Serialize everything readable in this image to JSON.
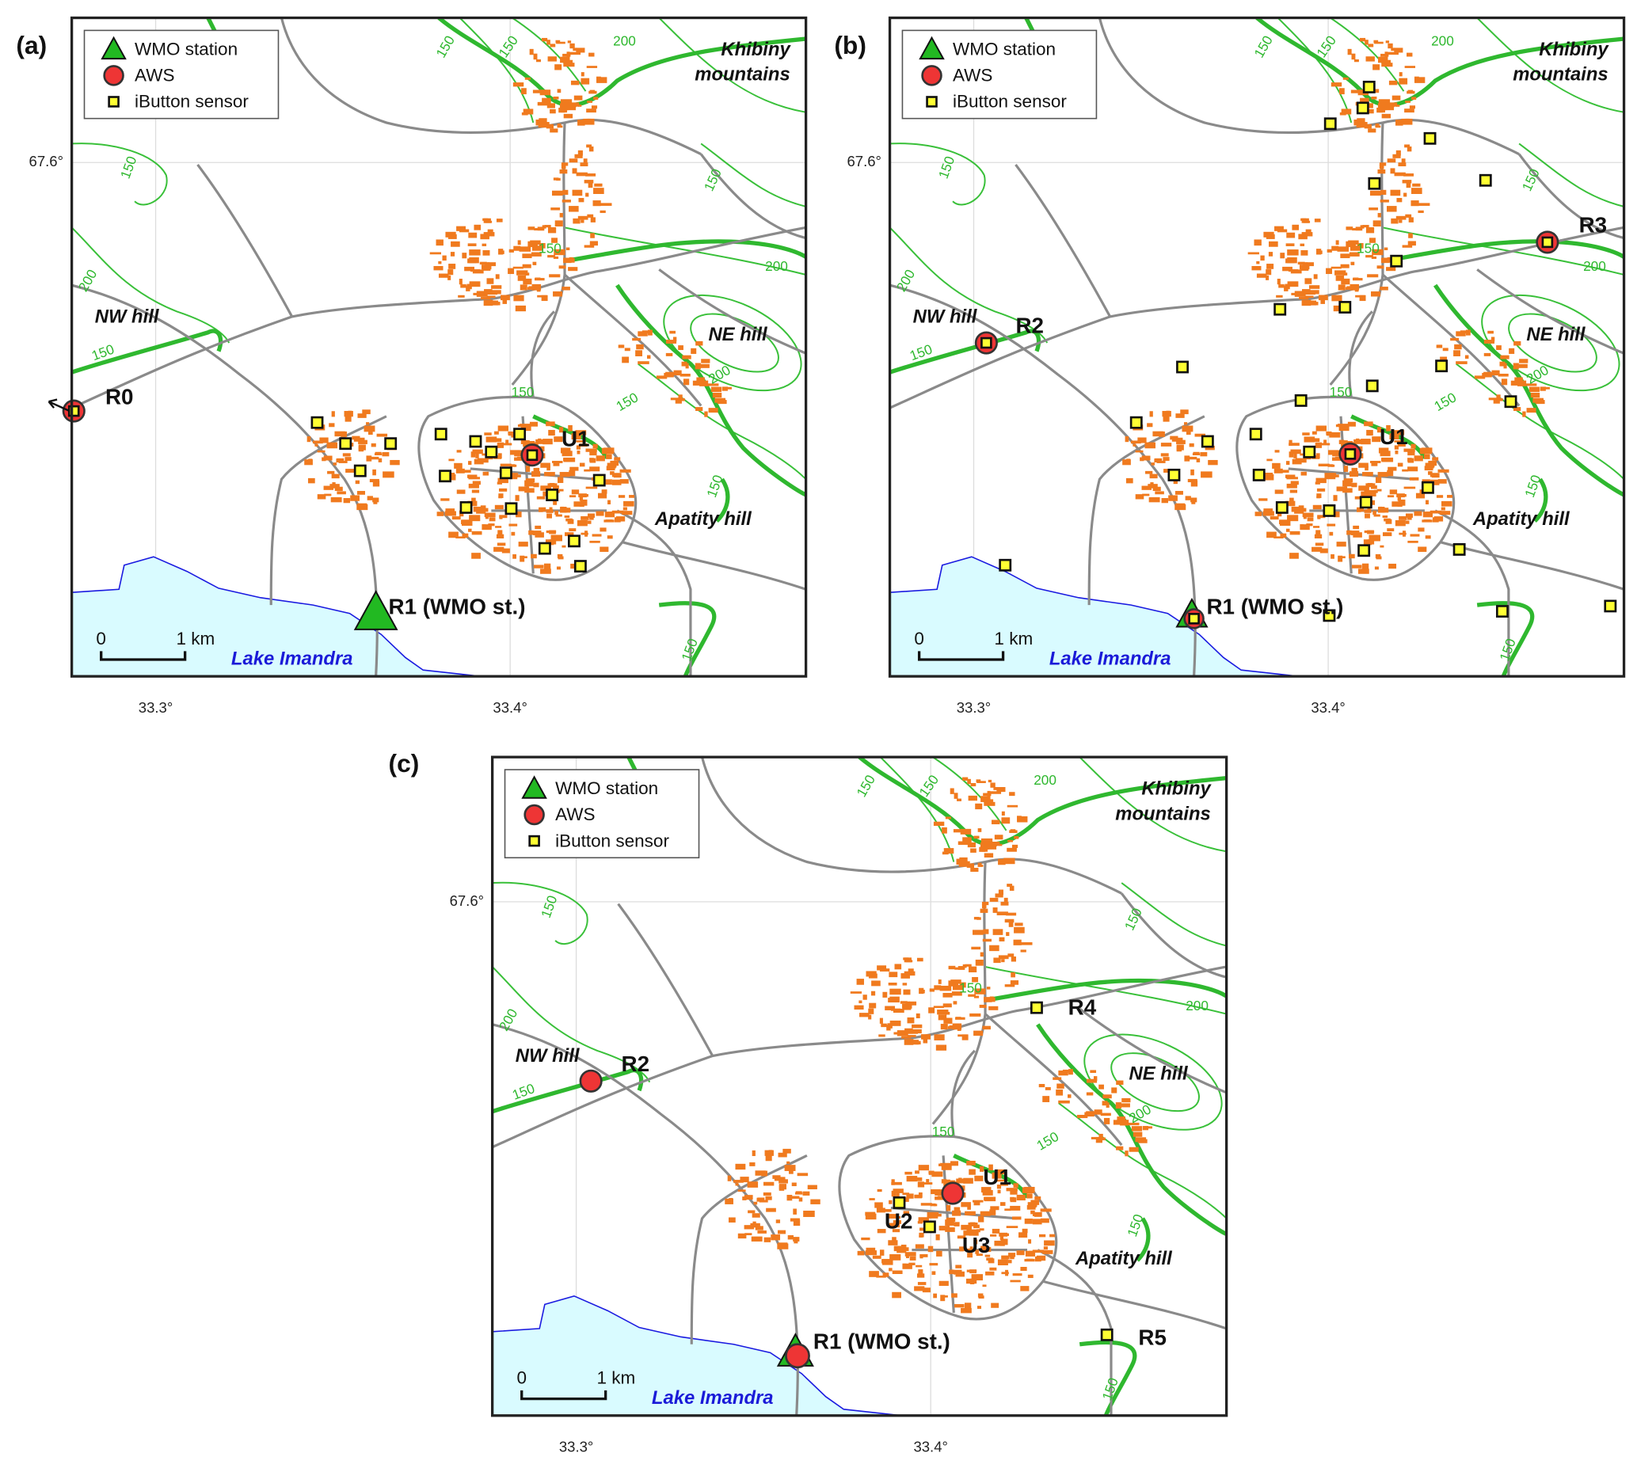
{
  "panels": [
    {
      "label": "(a)",
      "legend": [
        "WMO station",
        "AWS",
        "iButton sensor"
      ],
      "places": {
        "mountains": [
          "Khibiny",
          "mountains"
        ],
        "nw_hill": "NW hill",
        "ne_hill": "NE hill",
        "apatity_hill": "Apatity hill",
        "lake": "Lake Imandra"
      },
      "scale": [
        "0",
        "1 km"
      ],
      "lat_label": "67.6°",
      "lon_labels": [
        "33.3°",
        "33.4°"
      ],
      "contour_labels": [
        "150",
        "150",
        "200",
        "150",
        "150",
        "200",
        "150",
        "150",
        "150",
        "200",
        "150",
        "150",
        "200",
        "150"
      ],
      "station_labels": [
        "R0",
        "U1",
        "R1 (WMO st.)"
      ]
    },
    {
      "label": "(b)",
      "legend": [
        "WMO station",
        "AWS",
        "iButton sensor"
      ],
      "places": {
        "mountains": [
          "Khibiny",
          "mountains"
        ],
        "nw_hill": "NW hill",
        "ne_hill": "NE hill",
        "apatity_hill": "Apatity hill",
        "lake": "Lake Imandra"
      },
      "scale": [
        "0",
        "1 km"
      ],
      "lat_label": "67.6°",
      "lon_labels": [
        "33.3°",
        "33.4°"
      ],
      "contour_labels": [
        "150",
        "150",
        "200",
        "150",
        "150",
        "200",
        "150",
        "150",
        "150",
        "200",
        "150",
        "150",
        "200",
        "150"
      ],
      "station_labels": [
        "R2",
        "R3",
        "U1",
        "R1 (WMO st.)"
      ]
    },
    {
      "label": "(c)",
      "legend": [
        "WMO station",
        "AWS",
        "iButton sensor"
      ],
      "places": {
        "mountains": [
          "Khibiny",
          "mountains"
        ],
        "nw_hill": "NW hill",
        "ne_hill": "NE hill",
        "apatity_hill": "Apatity hill",
        "lake": "Lake Imandra"
      },
      "scale": [
        "0",
        "1 km"
      ],
      "lat_label": "67.6°",
      "lon_labels": [
        "33.3°",
        "33.4°"
      ],
      "contour_labels": [
        "150",
        "150",
        "200",
        "150",
        "150",
        "200",
        "150",
        "150",
        "150",
        "200",
        "150",
        "150",
        "200",
        "150"
      ],
      "station_labels": [
        "R2",
        "R4",
        "U1",
        "U2",
        "U3",
        "R5",
        "R1 (WMO st.)"
      ]
    }
  ]
}
